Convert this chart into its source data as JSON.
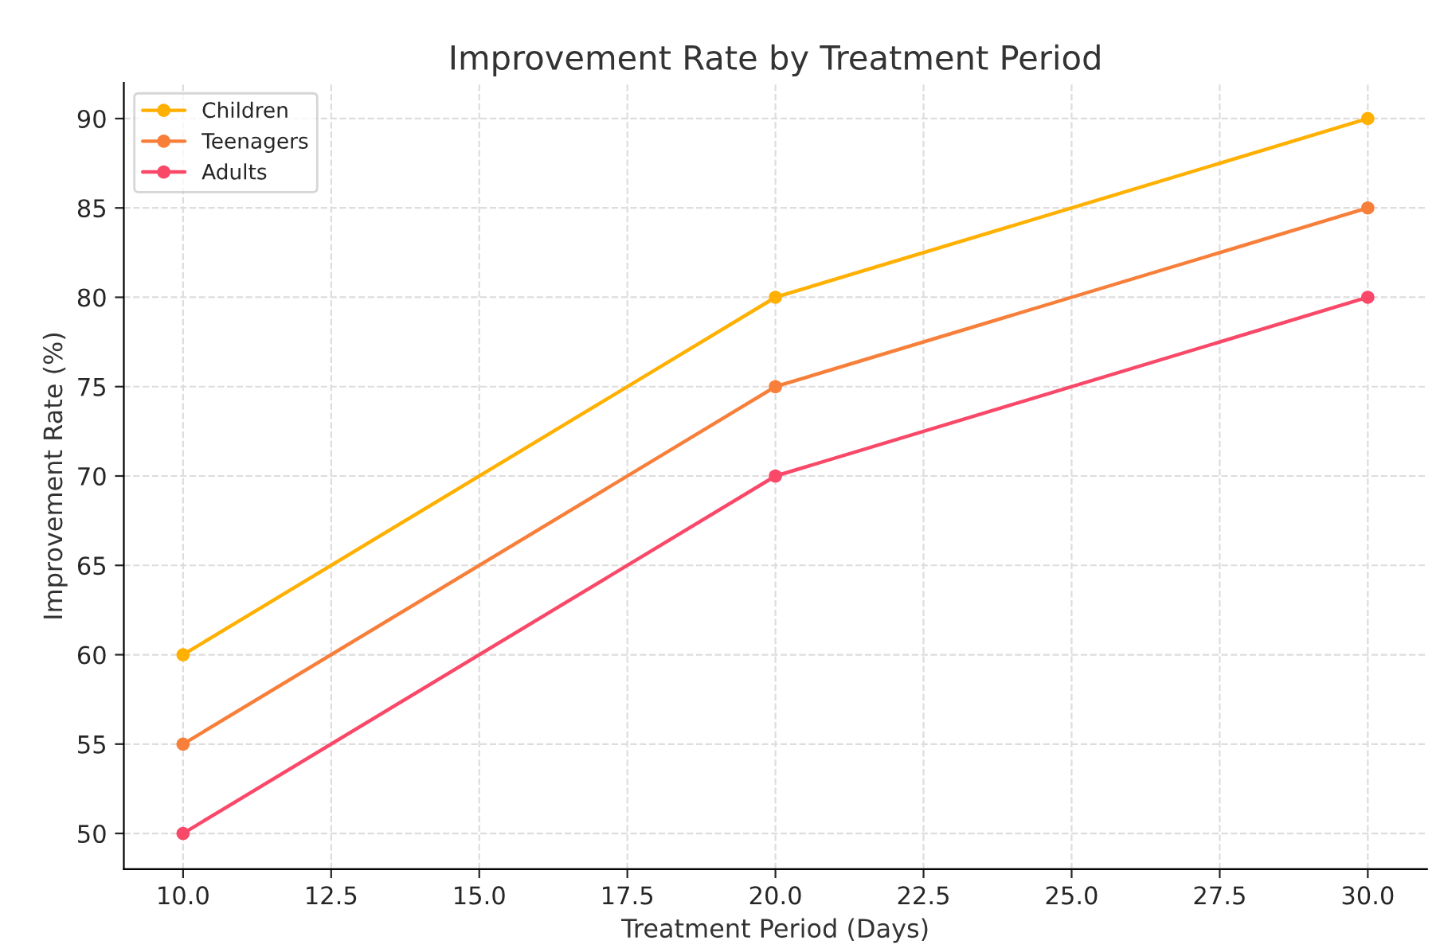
{
  "chart_data": {
    "type": "line",
    "title": "Improvement Rate by Treatment Period",
    "xlabel": "Treatment Period (Days)",
    "ylabel": "Improvement Rate (%)",
    "x": [
      10,
      20,
      30
    ],
    "series": [
      {
        "name": "Children",
        "color": "#ffb000",
        "values": [
          60,
          80,
          90
        ]
      },
      {
        "name": "Teenagers",
        "color": "#f77f3a",
        "values": [
          55,
          75,
          85
        ]
      },
      {
        "name": "Adults",
        "color": "#f94868",
        "values": [
          50,
          70,
          80
        ]
      }
    ],
    "xlim": [
      9,
      31
    ],
    "ylim": [
      48,
      92
    ],
    "xticks": [
      {
        "value": 10,
        "label": "10.0"
      },
      {
        "value": 12.5,
        "label": "12.5"
      },
      {
        "value": 15,
        "label": "15.0"
      },
      {
        "value": 17.5,
        "label": "17.5"
      },
      {
        "value": 20,
        "label": "20.0"
      },
      {
        "value": 22.5,
        "label": "22.5"
      },
      {
        "value": 25,
        "label": "25.0"
      },
      {
        "value": 27.5,
        "label": "27.5"
      },
      {
        "value": 30,
        "label": "30.0"
      }
    ],
    "yticks": [
      50,
      55,
      60,
      65,
      70,
      75,
      80,
      85,
      90
    ],
    "grid": true,
    "legend": "top left",
    "marker": "circle",
    "line_style": "solid"
  }
}
